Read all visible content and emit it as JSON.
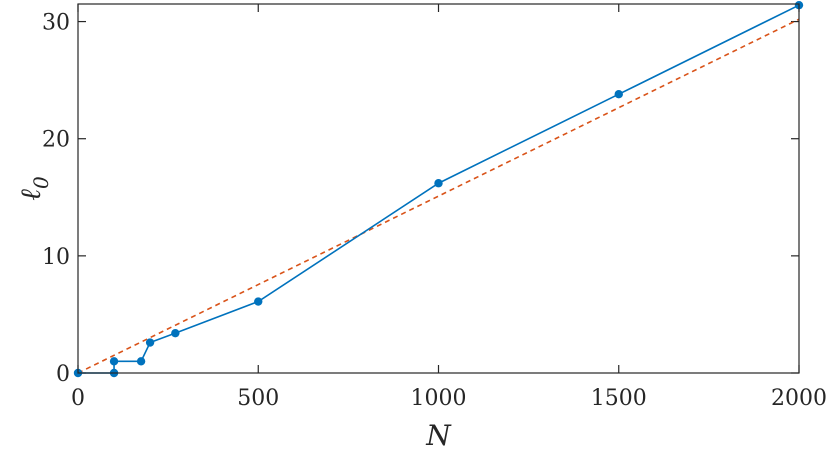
{
  "chart_data": {
    "type": "line",
    "title": "",
    "xlabel": "N",
    "ylabel": "ℓ",
    "ylabel_subscript": "0",
    "xlim": [
      0,
      2000
    ],
    "ylim": [
      0,
      31.5
    ],
    "grid": false,
    "x_ticks": [
      0,
      500,
      1000,
      1500,
      2000
    ],
    "x_tick_labels": [
      "0",
      "500",
      "1000",
      "1500",
      "2000"
    ],
    "y_ticks": [
      0,
      10,
      20,
      30
    ],
    "y_tick_labels": [
      "0",
      "10",
      "20",
      "30"
    ],
    "series": [
      {
        "style": "solid-with-markers",
        "color": "#0072BD",
        "x": [
          0,
          100,
          100,
          175,
          200,
          270,
          500,
          1000,
          1500,
          2000
        ],
        "y": [
          0,
          0,
          1,
          1,
          2.6,
          3.4,
          6.1,
          16.2,
          23.8,
          31.4
        ]
      },
      {
        "style": "dashed",
        "color": "#D95319",
        "x": [
          0,
          2000
        ],
        "y": [
          0,
          30.2
        ]
      }
    ]
  }
}
